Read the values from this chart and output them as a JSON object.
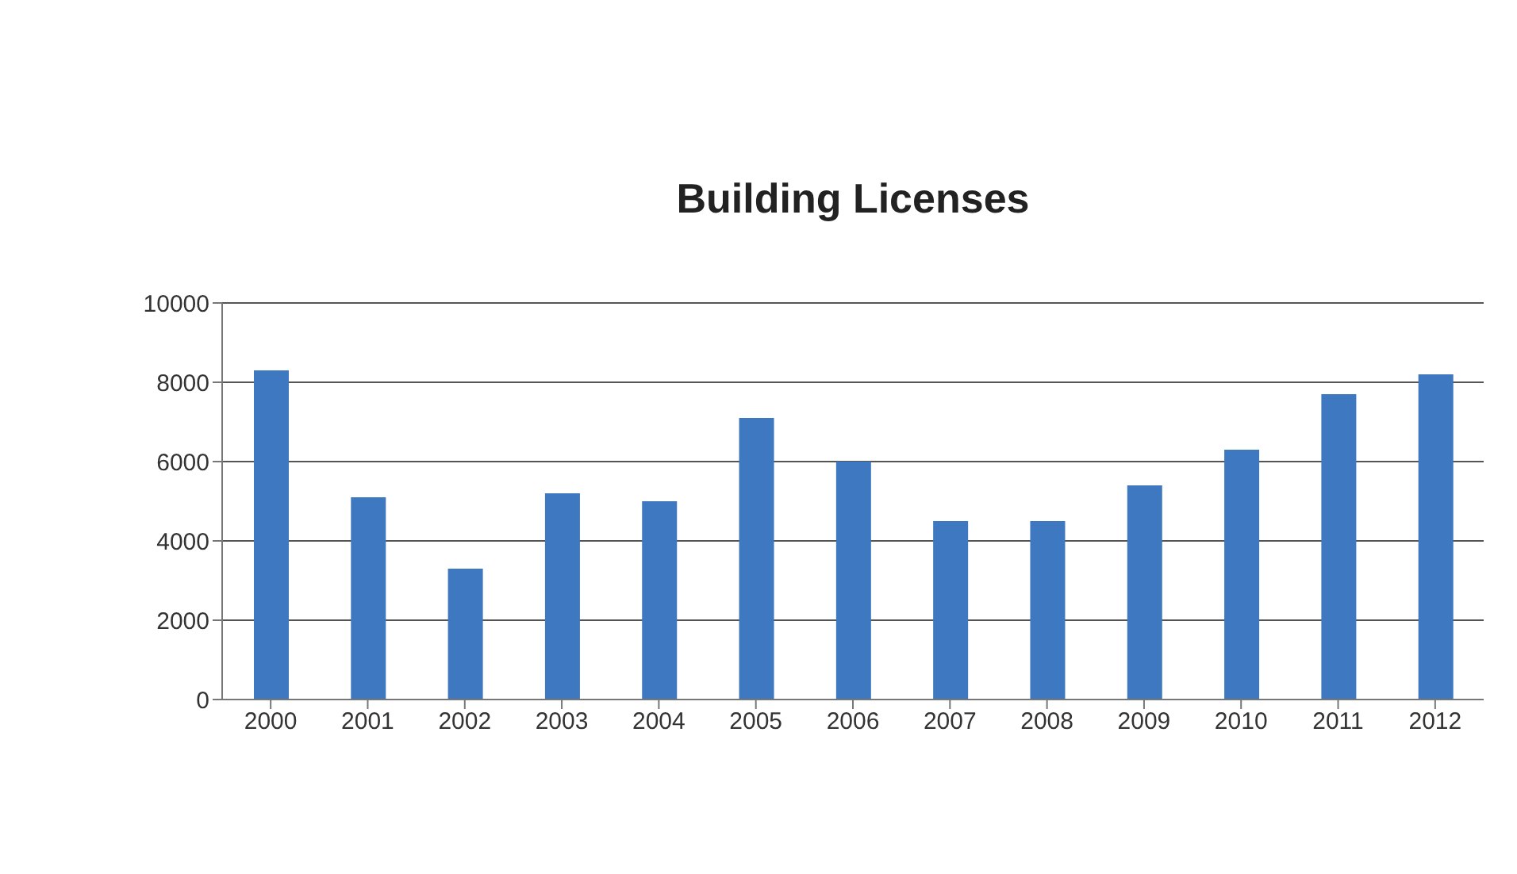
{
  "chart_data": {
    "type": "bar",
    "title": "Building Licenses",
    "categories": [
      "2000",
      "2001",
      "2002",
      "2003",
      "2004",
      "2005",
      "2006",
      "2007",
      "2008",
      "2009",
      "2010",
      "2011",
      "2012"
    ],
    "values": [
      8300,
      5100,
      3300,
      5200,
      5000,
      7100,
      6000,
      4500,
      4500,
      5400,
      6300,
      7700,
      8200
    ],
    "color": "#3d78c1",
    "ylim": [
      0,
      10000
    ],
    "yticks": [
      0,
      2000,
      4000,
      6000,
      8000,
      10000
    ],
    "grid": "y"
  }
}
